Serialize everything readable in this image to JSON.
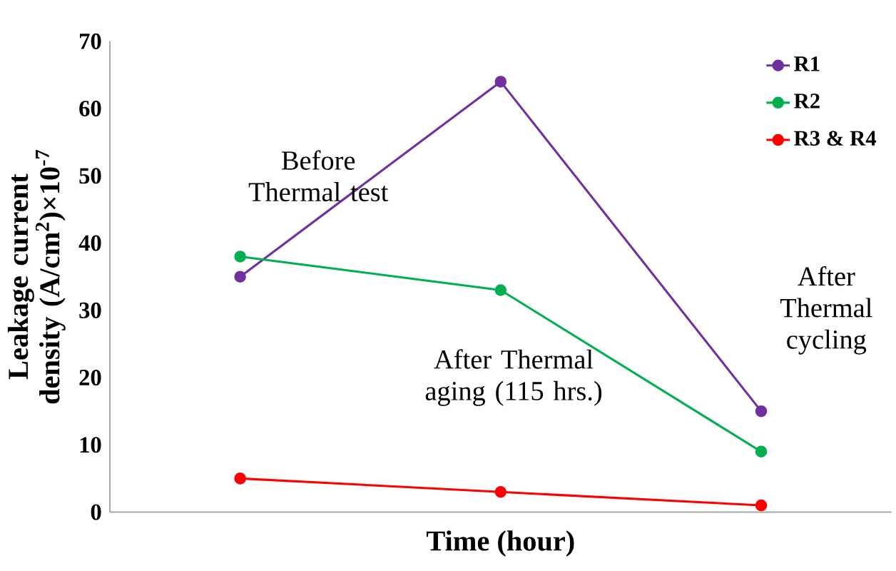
{
  "chart_data": {
    "type": "line",
    "xlabel": "Time (hour)",
    "ylabel": "Leakage current density (A/cm$^{2}$)×10$^{-7}$",
    "categories": [
      null,
      null,
      null
    ],
    "series": [
      {
        "name": "R1",
        "color": "#7030a0",
        "values": [
          35,
          64,
          15
        ]
      },
      {
        "name": "R2",
        "color": "#00b050",
        "values": [
          38,
          33,
          9
        ]
      },
      {
        "name": "R3 & R4",
        "color": "#ff0000",
        "values": [
          5,
          3,
          1
        ]
      }
    ],
    "ylim": [
      0,
      70
    ],
    "yticks": [
      0,
      10,
      20,
      30,
      40,
      50,
      60,
      70
    ],
    "grid": false,
    "legend": "top right",
    "marker": "circle",
    "line_style": "solid",
    "annotations": [
      "Before Thermal test",
      "After Thermal aging (115 hrs.)",
      "After Thermal cycling"
    ]
  }
}
